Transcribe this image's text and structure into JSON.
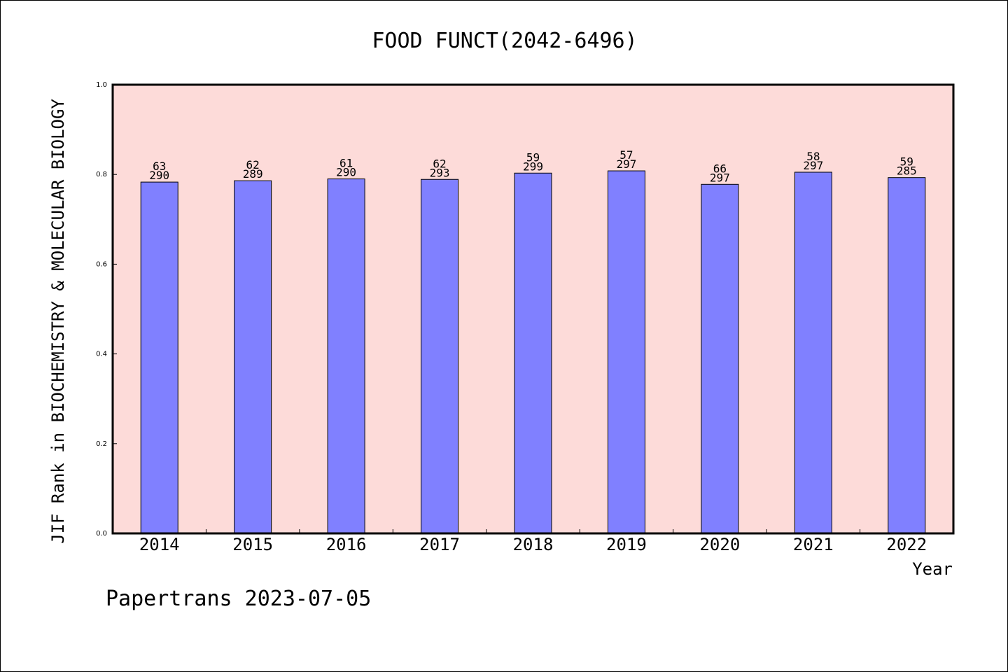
{
  "chart_data": {
    "type": "bar",
    "title": "FOOD FUNCT(2042-6496)",
    "xlabel": "Year",
    "ylabel": "JIF Rank in BIOCHEMISTRY & MOLECULAR BIOLOGY",
    "categories": [
      "2014",
      "2015",
      "2016",
      "2017",
      "2018",
      "2019",
      "2020",
      "2021",
      "2022"
    ],
    "values": [
      0.783,
      0.786,
      0.79,
      0.789,
      0.803,
      0.808,
      0.778,
      0.805,
      0.793
    ],
    "rank": [
      "63",
      "62",
      "61",
      "62",
      "59",
      "57",
      "66",
      "58",
      "59"
    ],
    "total": [
      "290",
      "289",
      "290",
      "293",
      "299",
      "297",
      "297",
      "297",
      "285"
    ],
    "ylim": [
      0,
      1.0
    ],
    "yticks": [
      "0.0",
      "0.2",
      "0.4",
      "0.6",
      "0.8",
      "1.0"
    ],
    "grid": false,
    "colors": {
      "plot_background": "#FDDBD9",
      "bar_fill": "#8080FF",
      "bar_stroke": "#000000"
    }
  },
  "footer": {
    "text": "Papertrans 2023-07-05"
  }
}
